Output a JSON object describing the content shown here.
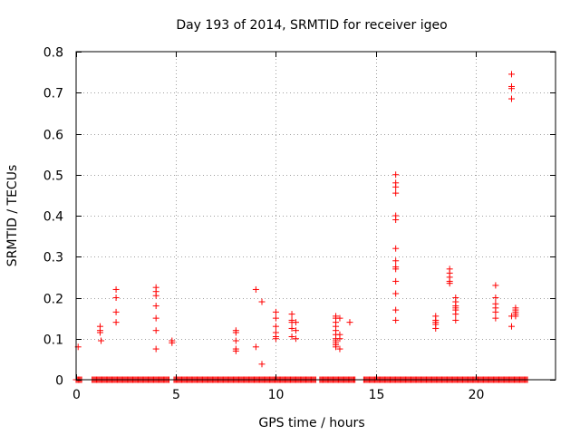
{
  "chart_data": {
    "type": "scatter",
    "title": "Day 193 of 2014, SRMTID for receiver igeo",
    "xlabel": "GPS time / hours",
    "ylabel": "SRMTID / TECUs",
    "xlim": [
      0,
      24
    ],
    "ylim": [
      0,
      0.8
    ],
    "x_ticks": [
      0,
      5,
      10,
      15,
      20
    ],
    "y_ticks": [
      0,
      0.1,
      0.2,
      0.3,
      0.4,
      0.5,
      0.6,
      0.7,
      0.8
    ],
    "x_tick_labels": [
      "0",
      "5",
      "10",
      "15",
      "20"
    ],
    "y_tick_labels": [
      "0",
      "0.1",
      "0.2",
      "0.3",
      "0.4",
      "0.5",
      "0.6",
      "0.7",
      "0.8"
    ],
    "grid": true,
    "marker": "plus",
    "color": "#ff0000",
    "series": [
      {
        "name": "SRMTID",
        "points": [
          [
            0.1,
            0.08
          ],
          [
            1.2,
            0.13
          ],
          [
            1.2,
            0.12
          ],
          [
            1.2,
            0.115
          ],
          [
            1.25,
            0.095
          ],
          [
            2.0,
            0.22
          ],
          [
            2.0,
            0.2
          ],
          [
            2.0,
            0.165
          ],
          [
            2.0,
            0.14
          ],
          [
            4.0,
            0.225
          ],
          [
            4.0,
            0.215
          ],
          [
            4.0,
            0.205
          ],
          [
            4.0,
            0.18
          ],
          [
            4.0,
            0.15
          ],
          [
            4.0,
            0.12
          ],
          [
            4.0,
            0.075
          ],
          [
            4.8,
            0.095
          ],
          [
            4.8,
            0.09
          ],
          [
            8.0,
            0.12
          ],
          [
            8.0,
            0.115
          ],
          [
            8.0,
            0.095
          ],
          [
            8.0,
            0.075
          ],
          [
            8.0,
            0.07
          ],
          [
            9.0,
            0.22
          ],
          [
            9.0,
            0.08
          ],
          [
            9.3,
            0.19
          ],
          [
            9.3,
            0.038
          ],
          [
            10.0,
            0.165
          ],
          [
            10.0,
            0.15
          ],
          [
            10.0,
            0.13
          ],
          [
            10.0,
            0.115
          ],
          [
            10.0,
            0.105
          ],
          [
            10.0,
            0.1
          ],
          [
            10.8,
            0.16
          ],
          [
            10.8,
            0.145
          ],
          [
            10.8,
            0.14
          ],
          [
            10.8,
            0.125
          ],
          [
            10.8,
            0.105
          ],
          [
            11.0,
            0.14
          ],
          [
            11.0,
            0.12
          ],
          [
            11.0,
            0.1
          ],
          [
            13.0,
            0.155
          ],
          [
            13.0,
            0.15
          ],
          [
            13.0,
            0.14
          ],
          [
            13.0,
            0.13
          ],
          [
            13.0,
            0.12
          ],
          [
            13.0,
            0.11
          ],
          [
            13.0,
            0.1
          ],
          [
            13.0,
            0.095
          ],
          [
            13.0,
            0.09
          ],
          [
            13.0,
            0.085
          ],
          [
            13.0,
            0.08
          ],
          [
            13.2,
            0.15
          ],
          [
            13.2,
            0.11
          ],
          [
            13.2,
            0.1
          ],
          [
            13.2,
            0.075
          ],
          [
            13.7,
            0.14
          ],
          [
            16.0,
            0.5
          ],
          [
            16.0,
            0.48
          ],
          [
            16.0,
            0.47
          ],
          [
            16.0,
            0.455
          ],
          [
            16.0,
            0.4
          ],
          [
            16.0,
            0.39
          ],
          [
            16.0,
            0.32
          ],
          [
            16.0,
            0.29
          ],
          [
            16.0,
            0.275
          ],
          [
            16.0,
            0.27
          ],
          [
            16.0,
            0.24
          ],
          [
            16.0,
            0.21
          ],
          [
            16.0,
            0.17
          ],
          [
            16.0,
            0.145
          ],
          [
            18.0,
            0.155
          ],
          [
            18.0,
            0.145
          ],
          [
            18.0,
            0.14
          ],
          [
            18.0,
            0.135
          ],
          [
            18.0,
            0.125
          ],
          [
            18.7,
            0.27
          ],
          [
            18.7,
            0.26
          ],
          [
            18.7,
            0.25
          ],
          [
            18.7,
            0.24
          ],
          [
            18.7,
            0.235
          ],
          [
            19.0,
            0.2
          ],
          [
            19.0,
            0.19
          ],
          [
            19.0,
            0.18
          ],
          [
            19.0,
            0.175
          ],
          [
            19.0,
            0.17
          ],
          [
            19.0,
            0.16
          ],
          [
            19.0,
            0.145
          ],
          [
            21.0,
            0.23
          ],
          [
            21.0,
            0.2
          ],
          [
            21.0,
            0.185
          ],
          [
            21.0,
            0.175
          ],
          [
            21.0,
            0.165
          ],
          [
            21.0,
            0.15
          ],
          [
            21.8,
            0.745
          ],
          [
            21.8,
            0.715
          ],
          [
            21.8,
            0.71
          ],
          [
            21.8,
            0.685
          ],
          [
            21.8,
            0.155
          ],
          [
            21.8,
            0.13
          ],
          [
            22.0,
            0.175
          ],
          [
            22.0,
            0.17
          ],
          [
            22.0,
            0.165
          ],
          [
            22.0,
            0.16
          ],
          [
            22.0,
            0.155
          ]
        ],
        "zero_runs": [
          [
            0.0,
            0.3
          ],
          [
            0.8,
            4.7
          ],
          [
            4.9,
            12.0
          ],
          [
            12.2,
            14.0
          ],
          [
            14.4,
            22.6
          ]
        ]
      }
    ]
  }
}
